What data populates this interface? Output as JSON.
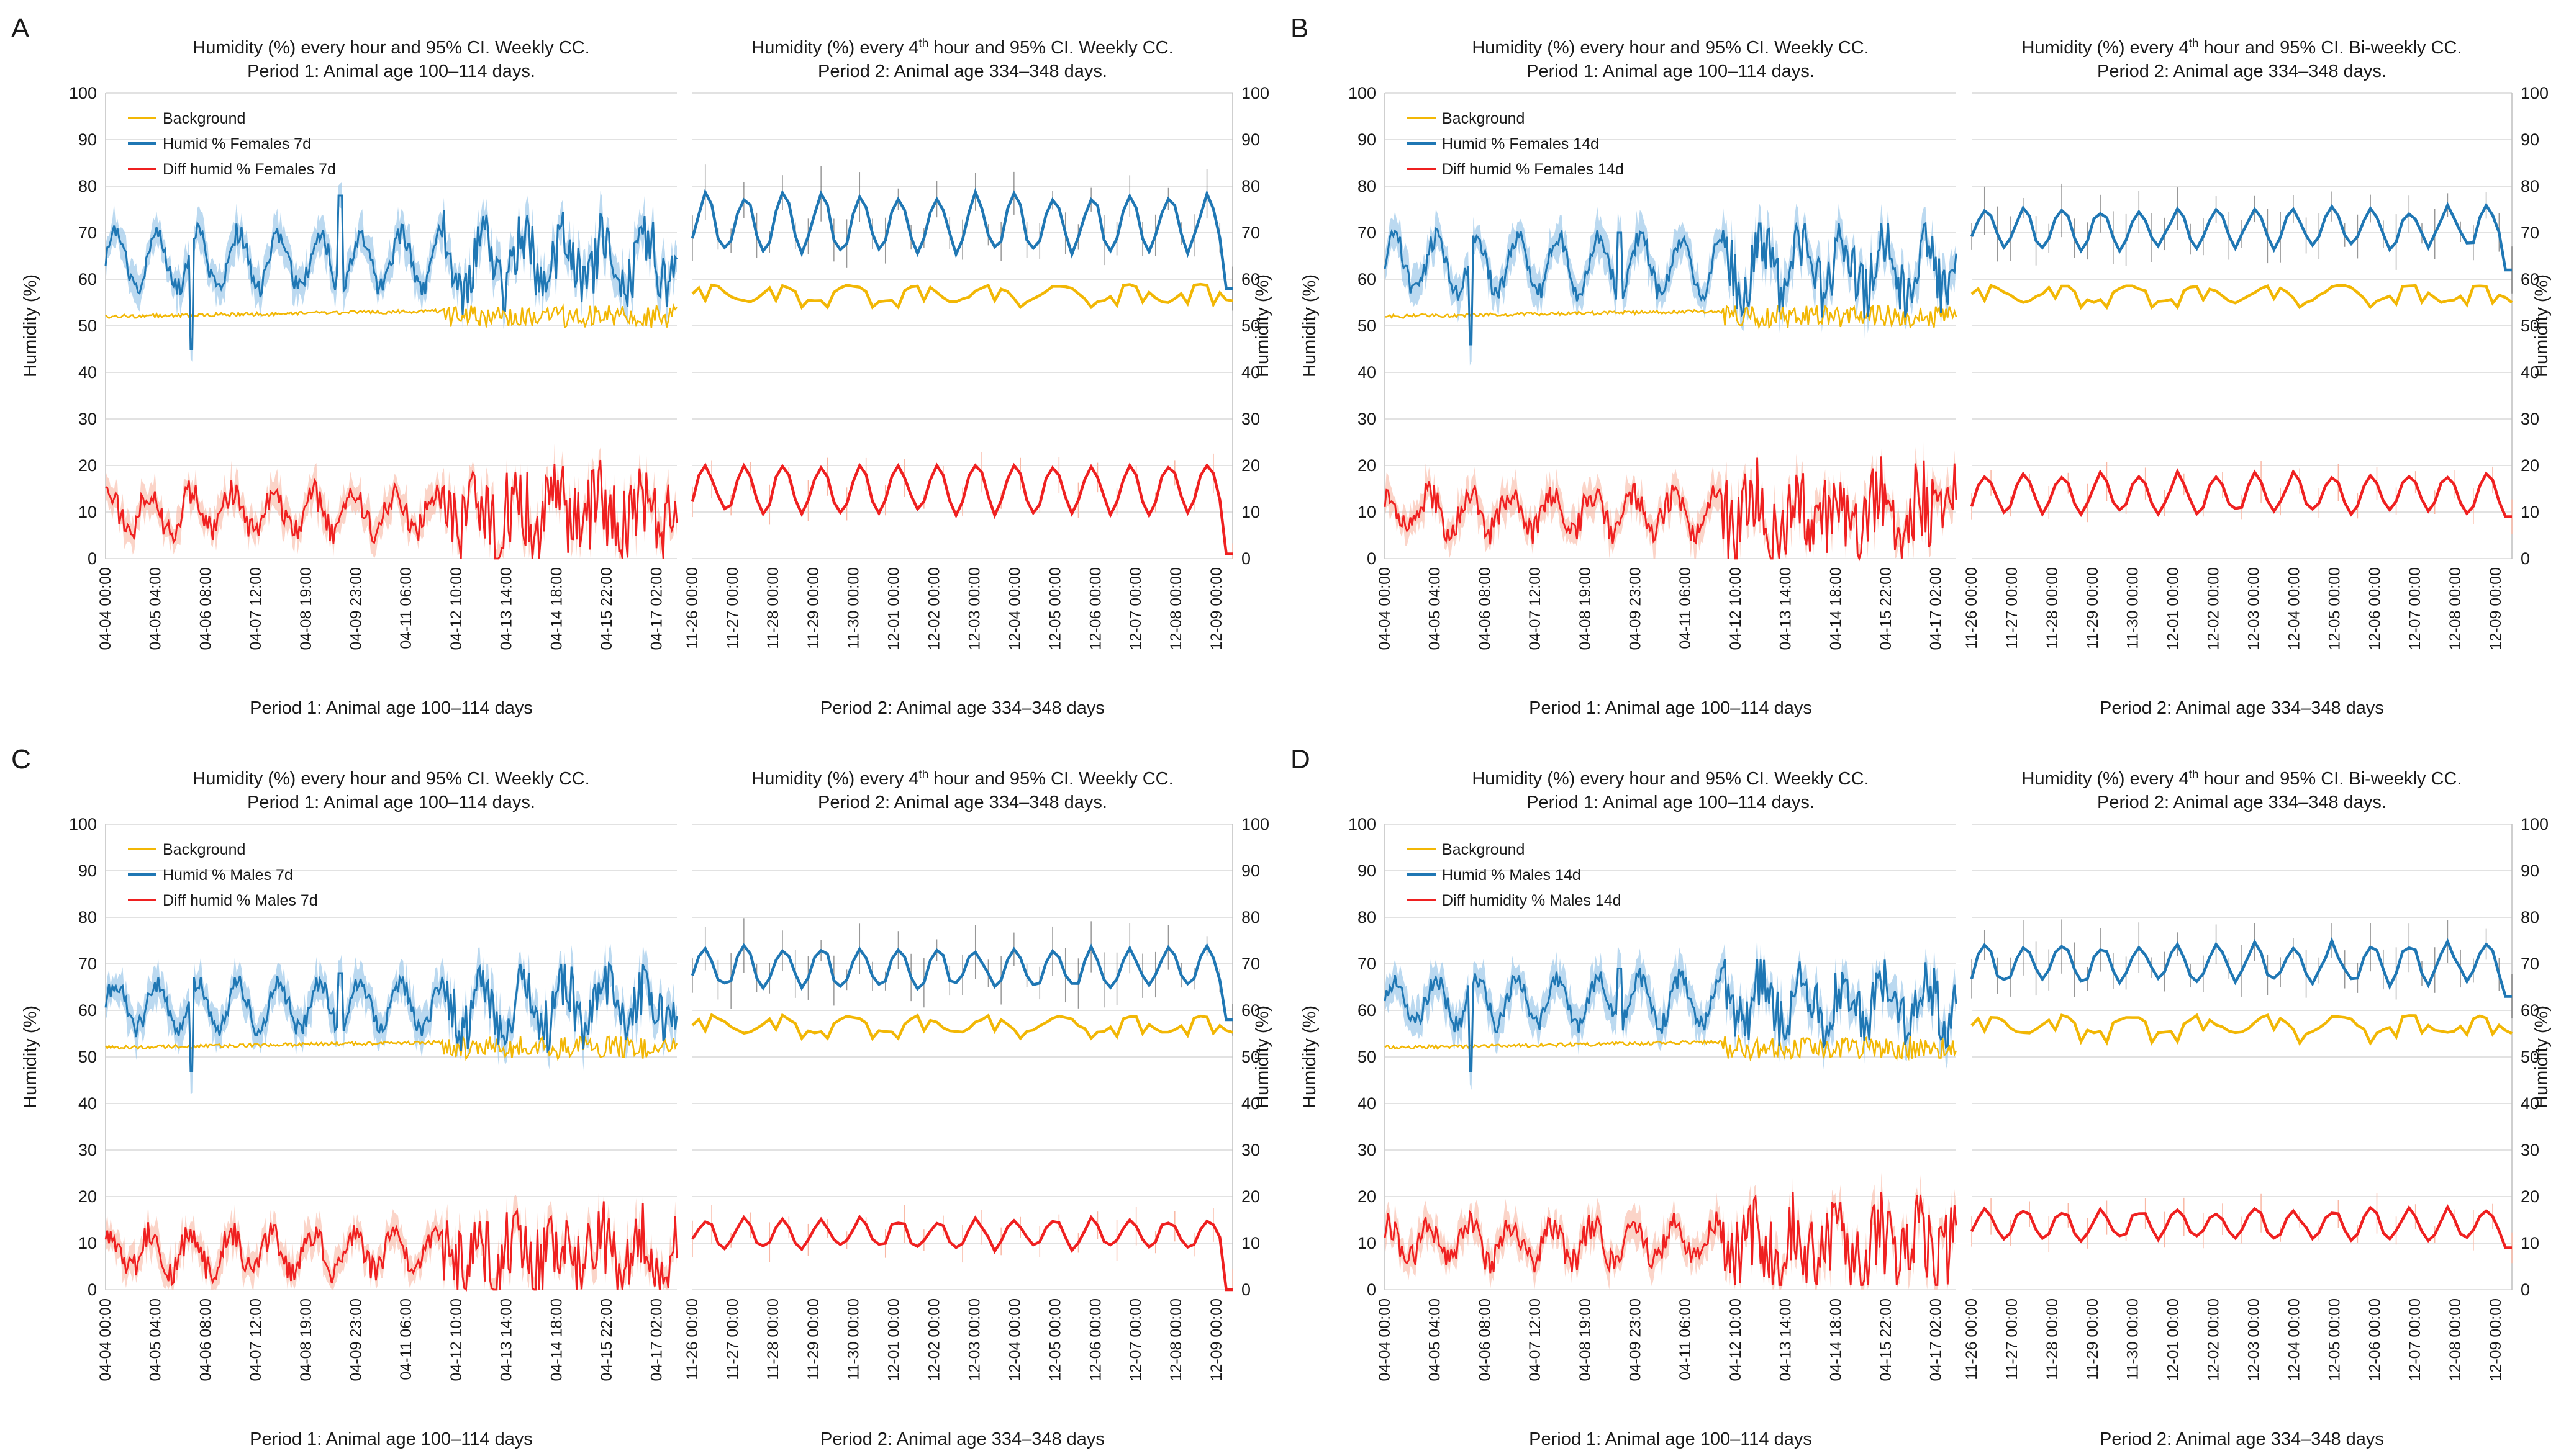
{
  "colors": {
    "background": "#f2b705",
    "humid": "#1f77b4",
    "humid_band": "#9ec9ea",
    "diff": "#ef2020",
    "diff_band": "#f9b7a4",
    "grid": "#d9d9d9",
    "ci_bar": "#555555"
  },
  "axis": {
    "ylabel": "Humidity (%)",
    "yticks": [
      "0",
      "10",
      "20",
      "30",
      "40",
      "50",
      "60",
      "70",
      "80",
      "90",
      "100"
    ]
  },
  "periods": {
    "p1": {
      "xticks": [
        "04-04 00:00",
        "04-05 04:00",
        "04-06 08:00",
        "04-07 12:00",
        "04-08 19:00",
        "04-09 23:00",
        "04-11 06:00",
        "04-12 10:00",
        "04-13 14:00",
        "04-14 18:00",
        "04-15 22:00",
        "04-17 02:00"
      ],
      "label": "Period 1: Animal age 100–114 days",
      "title_line2": "Period 1: Animal age 100–114 days."
    },
    "p2": {
      "xticks": [
        "11-26 00:00",
        "11-27 00:00",
        "11-28 00:00",
        "11-29 00:00",
        "11-30 00:00",
        "12-01 00:00",
        "12-02 00:00",
        "12-03 00:00",
        "12-04 00:00",
        "12-05 00:00",
        "12-06 00:00",
        "12-07 00:00",
        "12-08 00:00",
        "12-09 00:00"
      ],
      "label": "Period 2: Animal age 334–348 days",
      "title_line2": "Period 2: Animal age 334–348 days."
    }
  },
  "panels": [
    {
      "letter": "A",
      "left_title": "Humidity (%) every hour and 95% CI. Weekly CC.",
      "right_title": "Humidity (%) every 4th hour and 95% CI.  Weekly CC.",
      "legend": [
        "Background",
        "Humid % Females 7d",
        "Diff humid % Females 7d"
      ]
    },
    {
      "letter": "B",
      "left_title": "Humidity (%) every hour and 95% CI. Weekly CC.",
      "right_title": "Humidity (%) every 4th hour and 95% CI.  Bi-weekly CC.",
      "legend": [
        "Background",
        "Humid % Females 14d",
        "Diff humid % Females 14d"
      ]
    },
    {
      "letter": "C",
      "left_title": "Humidity (%) every hour and 95% CI. Weekly CC.",
      "right_title": "Humidity (%) every 4th hour and 95% CI.  Weekly CC.",
      "legend": [
        "Background",
        "Humid % Males 7d",
        "Diff humid % Males 7d"
      ]
    },
    {
      "letter": "D",
      "left_title": "Humidity (%) every hour and 95% CI. Weekly CC.",
      "right_title": "Humidity (%) every 4th hour and 95% CI.  Bi-weekly CC.",
      "legend": [
        "Background",
        "Humid % Males 14d",
        "Diff humidity % Males 14d"
      ]
    }
  ],
  "chart_data": [
    {
      "panel": "A",
      "type": "line",
      "ylim": [
        0,
        100
      ],
      "ylabel": "Humidity (%)",
      "grid": true,
      "legend_position": "top-left",
      "series": [
        {
          "name": "Background",
          "period1": {
            "start": 52,
            "end": 51,
            "step_at": 0.59,
            "after_step": 52,
            "noise_after": 3
          },
          "period2": {
            "level": 57,
            "range": [
              54,
              60
            ]
          }
        },
        {
          "name": "Humid % Females 7d",
          "period1": {
            "mean": 64,
            "amplitude": 6,
            "period_days": 1,
            "range": [
              45,
              80
            ]
          },
          "period2": {
            "mean": 72,
            "amplitude": 6,
            "period_days": 1,
            "range": [
              58,
              79
            ]
          }
        },
        {
          "name": "Diff humid % Females 7d",
          "period1": {
            "mean": 10,
            "range": [
              0,
              27
            ]
          },
          "period2": {
            "mean": 15,
            "amplitude": 5,
            "range": [
              1,
              20
            ]
          }
        }
      ]
    },
    {
      "panel": "B",
      "type": "line",
      "ylim": [
        0,
        100
      ],
      "ylabel": "Humidity (%)",
      "grid": true,
      "legend_position": "top-left",
      "series": [
        {
          "name": "Background",
          "period1": {
            "start": 52,
            "end": 51,
            "step_at": 0.59,
            "after_step": 52,
            "noise_after": 3
          },
          "period2": {
            "level": 57,
            "range": [
              54,
              60
            ]
          }
        },
        {
          "name": "Humid % Females 14d",
          "period1": {
            "mean": 63,
            "amplitude": 6,
            "period_days": 1,
            "range": [
              46,
              72
            ]
          },
          "period2": {
            "mean": 71,
            "amplitude": 4,
            "period_days": 1,
            "range": [
              62,
              78
            ]
          }
        },
        {
          "name": "Diff humid % Females 14d",
          "period1": {
            "mean": 10,
            "range": [
              0,
              23
            ]
          },
          "period2": {
            "mean": 14,
            "amplitude": 4,
            "range": [
              9,
              20
            ]
          }
        }
      ]
    },
    {
      "panel": "C",
      "type": "line",
      "ylim": [
        0,
        100
      ],
      "ylabel": "Humidity (%)",
      "grid": true,
      "legend_position": "top-left",
      "series": [
        {
          "name": "Background",
          "period1": {
            "start": 52,
            "end": 51,
            "step_at": 0.59,
            "after_step": 52,
            "noise_after": 3
          },
          "period2": {
            "level": 57,
            "range": [
              54,
              60
            ]
          }
        },
        {
          "name": "Humid % Males 7d",
          "period1": {
            "mean": 61,
            "amplitude": 5,
            "period_days": 1,
            "range": [
              47,
              70
            ]
          },
          "period2": {
            "mean": 69,
            "amplitude": 4,
            "period_days": 1,
            "range": [
              58,
              76
            ]
          }
        },
        {
          "name": "Diff humid % Males 7d",
          "period1": {
            "mean": 8,
            "range": [
              0,
              19
            ]
          },
          "period2": {
            "mean": 12,
            "amplitude": 3,
            "range": [
              0,
              17
            ]
          }
        }
      ]
    },
    {
      "panel": "D",
      "type": "line",
      "ylim": [
        0,
        100
      ],
      "ylabel": "Humidity (%)",
      "grid": true,
      "legend_position": "top-left",
      "series": [
        {
          "name": "Background",
          "period1": {
            "start": 52,
            "end": 51,
            "step_at": 0.59,
            "after_step": 52,
            "noise_after": 3
          },
          "period2": {
            "level": 57,
            "range": [
              53,
              60
            ]
          }
        },
        {
          "name": "Humid % Males 14d",
          "period1": {
            "mean": 62,
            "amplitude": 5,
            "period_days": 1,
            "range": [
              47,
              71
            ]
          },
          "period2": {
            "mean": 70,
            "amplitude": 4,
            "period_days": 1,
            "range": [
              63,
              79
            ]
          }
        },
        {
          "name": "Diff humidity % Males 14d",
          "period1": {
            "mean": 10,
            "range": [
              1,
              21
            ]
          },
          "period2": {
            "mean": 14,
            "amplitude": 3,
            "range": [
              9,
              22
            ]
          }
        }
      ]
    }
  ]
}
